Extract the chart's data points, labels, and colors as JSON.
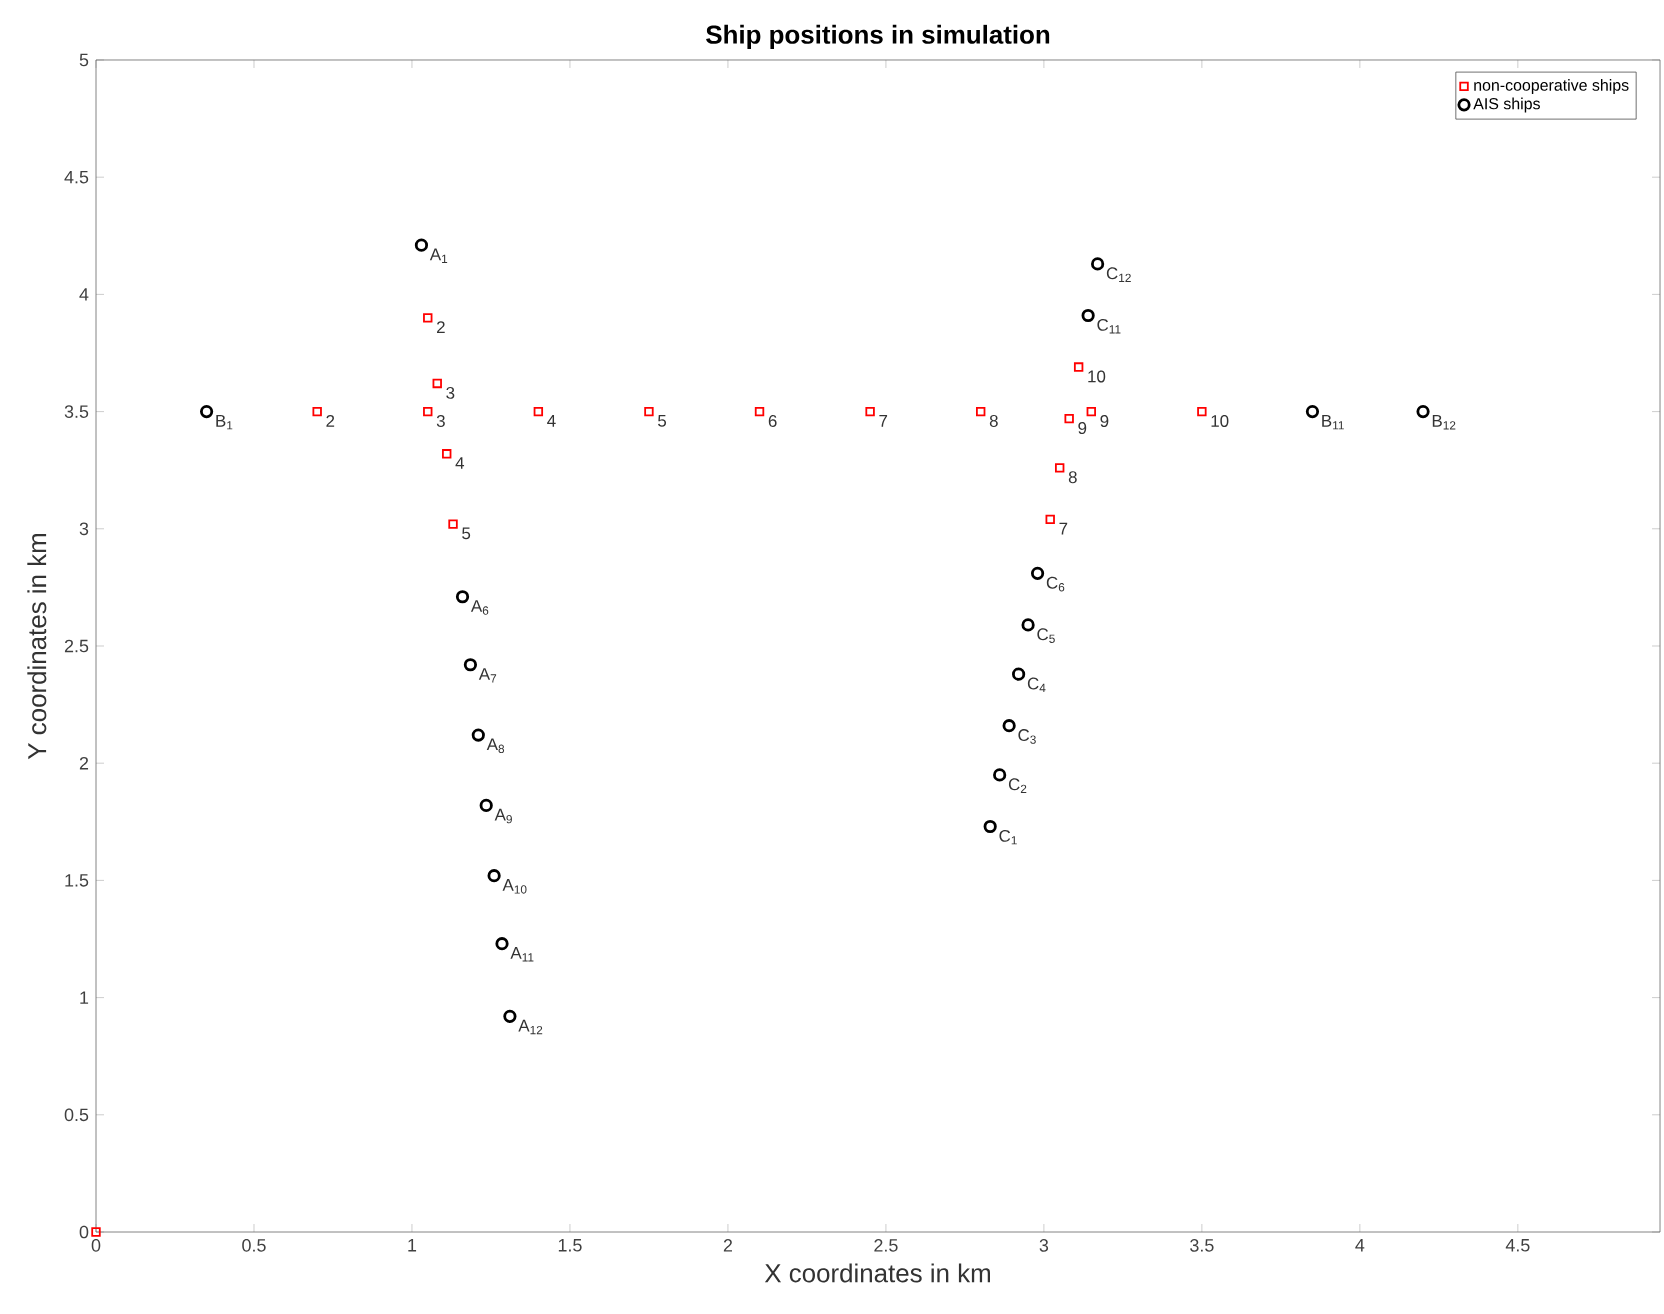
{
  "chart_data": {
    "type": "scatter",
    "title": "Ship positions in simulation",
    "xlabel": "X coordinates in km",
    "ylabel": "Y coordinates in km",
    "xlim": [
      0,
      4.95
    ],
    "ylim": [
      0,
      5
    ],
    "xticks": [
      0,
      0.5,
      1,
      1.5,
      2,
      2.5,
      3,
      3.5,
      4,
      4.5
    ],
    "yticks": [
      0,
      0.5,
      1,
      1.5,
      2,
      2.5,
      3,
      3.5,
      4,
      4.5,
      5
    ],
    "legend": "top right",
    "grid": false,
    "series": [
      {
        "name": "non-cooperative ships",
        "color": "#ff0000",
        "marker": "square",
        "x": [
          0,
          0.7,
          1.05,
          1.4,
          1.75,
          2.1,
          2.45,
          2.8,
          3.15,
          3.5,
          1.05,
          1.08,
          1.11,
          1.13,
          3.02,
          3.05,
          3.08,
          3.11
        ],
        "values": [
          0,
          3.5,
          3.5,
          3.5,
          3.5,
          3.5,
          3.5,
          3.5,
          3.5,
          3.5,
          3.9,
          3.62,
          3.32,
          3.02,
          3.04,
          3.26,
          3.47,
          3.69
        ]
      },
      {
        "name": "AIS ships",
        "color": "#000000",
        "marker": "circle",
        "x": [
          1.03,
          1.16,
          1.185,
          1.21,
          1.235,
          1.26,
          1.285,
          1.31,
          0.35,
          3.85,
          4.2,
          2.83,
          2.86,
          2.89,
          2.92,
          2.95,
          2.98,
          3.14,
          3.17
        ],
        "values": [
          4.21,
          2.71,
          2.42,
          2.12,
          1.82,
          1.52,
          1.23,
          0.92,
          3.5,
          3.5,
          3.5,
          1.73,
          1.95,
          2.16,
          2.38,
          2.59,
          2.81,
          3.91,
          4.13
        ]
      }
    ],
    "annotations": [
      {
        "text": "2",
        "x": 0.7,
        "y": 3.5
      },
      {
        "text": "3",
        "x": 1.05,
        "y": 3.5
      },
      {
        "text": "4",
        "x": 1.4,
        "y": 3.5
      },
      {
        "text": "5",
        "x": 1.75,
        "y": 3.5
      },
      {
        "text": "6",
        "x": 2.1,
        "y": 3.5
      },
      {
        "text": "7",
        "x": 2.45,
        "y": 3.5
      },
      {
        "text": "8",
        "x": 2.8,
        "y": 3.5
      },
      {
        "text": "9",
        "x": 3.15,
        "y": 3.5
      },
      {
        "text": "10",
        "x": 3.5,
        "y": 3.5
      },
      {
        "text": "2",
        "x": 1.05,
        "y": 3.9
      },
      {
        "text": "3",
        "x": 1.08,
        "y": 3.62
      },
      {
        "text": "4",
        "x": 1.11,
        "y": 3.32
      },
      {
        "text": "5",
        "x": 1.13,
        "y": 3.02
      },
      {
        "text": "7",
        "x": 3.02,
        "y": 3.04
      },
      {
        "text": "8",
        "x": 3.05,
        "y": 3.26
      },
      {
        "text": "9",
        "x": 3.08,
        "y": 3.47
      },
      {
        "text": "10",
        "x": 3.11,
        "y": 3.69
      },
      {
        "text": "A$_{1}$",
        "x": 1.03,
        "y": 4.21
      },
      {
        "text": "A$_{6}$",
        "x": 1.16,
        "y": 2.71
      },
      {
        "text": "A$_{7}$",
        "x": 1.185,
        "y": 2.42
      },
      {
        "text": "A$_{8}$",
        "x": 1.21,
        "y": 2.12
      },
      {
        "text": "A$_{9}$",
        "x": 1.235,
        "y": 1.82
      },
      {
        "text": "A$_{10}$",
        "x": 1.26,
        "y": 1.52
      },
      {
        "text": "A$_{11}$",
        "x": 1.285,
        "y": 1.23
      },
      {
        "text": "A$_{12}$",
        "x": 1.31,
        "y": 0.92
      },
      {
        "text": "B$_{1}$",
        "x": 0.35,
        "y": 3.5
      },
      {
        "text": "B$_{11}$",
        "x": 3.85,
        "y": 3.5
      },
      {
        "text": "B$_{12}$",
        "x": 4.2,
        "y": 3.5
      },
      {
        "text": "C$_{1}$",
        "x": 2.83,
        "y": 1.73
      },
      {
        "text": "C$_{2}$",
        "x": 2.86,
        "y": 1.95
      },
      {
        "text": "C$_{3}$",
        "x": 2.89,
        "y": 2.16
      },
      {
        "text": "C$_{4}$",
        "x": 2.92,
        "y": 2.38
      },
      {
        "text": "C$_{5}$",
        "x": 2.95,
        "y": 2.59
      },
      {
        "text": "C$_{6}$",
        "x": 2.98,
        "y": 2.81
      },
      {
        "text": "C$_{11}$",
        "x": 3.14,
        "y": 3.91
      },
      {
        "text": "C$_{12}$",
        "x": 3.17,
        "y": 4.13
      }
    ]
  }
}
